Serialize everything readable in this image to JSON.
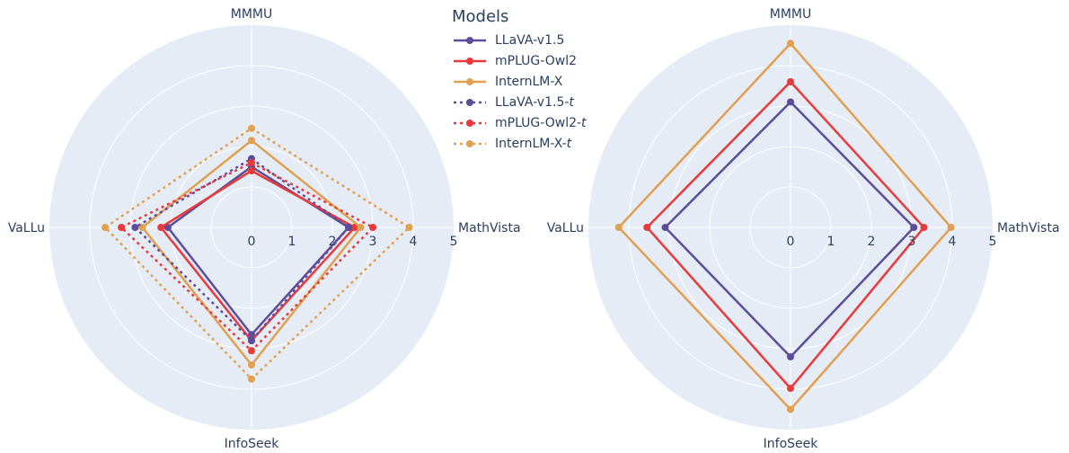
{
  "chart_data": [
    {
      "type": "radar",
      "axes": [
        "MMMU",
        "MathVista",
        "InfoSeek",
        "VaLLu"
      ],
      "radial_range": [
        0,
        5
      ],
      "radial_ticks": [
        0,
        1,
        2,
        3,
        4,
        5
      ],
      "series": [
        {
          "name": "LLaVA-v1.5",
          "values": [
            1.5,
            2.4,
            2.65,
            2.07
          ],
          "color": "#5c4d9a",
          "dash": "solid"
        },
        {
          "name": "mPLUG-Owl2",
          "values": [
            1.4,
            2.55,
            2.8,
            2.24
          ],
          "color": "#e8393b",
          "dash": "solid"
        },
        {
          "name": "InternLM-X",
          "values": [
            2.15,
            2.7,
            3.4,
            2.7
          ],
          "color": "#e0a050",
          "dash": "solid"
        },
        {
          "name": "LLaVA-v1.5-t",
          "values": [
            1.7,
            2.4,
            2.8,
            2.88
          ],
          "color": "#5c4d9a",
          "dash": "dot"
        },
        {
          "name": "mPLUG-Owl2-t",
          "values": [
            1.6,
            3.0,
            3.05,
            3.22
          ],
          "color": "#e8393b",
          "dash": "dot"
        },
        {
          "name": "InternLM-X-t",
          "values": [
            2.45,
            3.9,
            3.75,
            3.62
          ],
          "color": "#e0a050",
          "dash": "dot"
        }
      ]
    },
    {
      "type": "radar",
      "axes": [
        "MMMU",
        "MathVista",
        "InfoSeek",
        "VaLLu"
      ],
      "radial_range": [
        0,
        5
      ],
      "radial_ticks": [
        0,
        1,
        2,
        3,
        4,
        5
      ],
      "series": [
        {
          "name": "LLaVA-v1.5",
          "values": [
            3.1,
            3.05,
            3.2,
            3.1
          ],
          "color": "#5c4d9a",
          "dash": "solid"
        },
        {
          "name": "mPLUG-Owl2",
          "values": [
            3.6,
            3.3,
            3.98,
            3.55
          ],
          "color": "#e8393b",
          "dash": "solid"
        },
        {
          "name": "InternLM-X",
          "values": [
            4.55,
            3.97,
            4.5,
            4.25
          ],
          "color": "#e0a050",
          "dash": "solid"
        }
      ]
    }
  ],
  "legend": {
    "title": "Models",
    "items": [
      {
        "name": "LLaVA-v1.5",
        "color": "#5c4d9a",
        "dash": "solid"
      },
      {
        "name": "mPLUG-Owl2",
        "color": "#e8393b",
        "dash": "solid"
      },
      {
        "name": "InternLM-X",
        "color": "#e0a050",
        "dash": "solid"
      },
      {
        "name": "LLaVA-v1.5-t",
        "color": "#5c4d9a",
        "dash": "dot"
      },
      {
        "name": "mPLUG-Owl2-t",
        "color": "#e8393b",
        "dash": "dot"
      },
      {
        "name": "InternLM-X-t",
        "color": "#e0a050",
        "dash": "dot"
      }
    ]
  },
  "colors": {
    "polar_bg": "#e5ecf6",
    "grid": "#ffffff",
    "text": "#2a3f5f"
  }
}
